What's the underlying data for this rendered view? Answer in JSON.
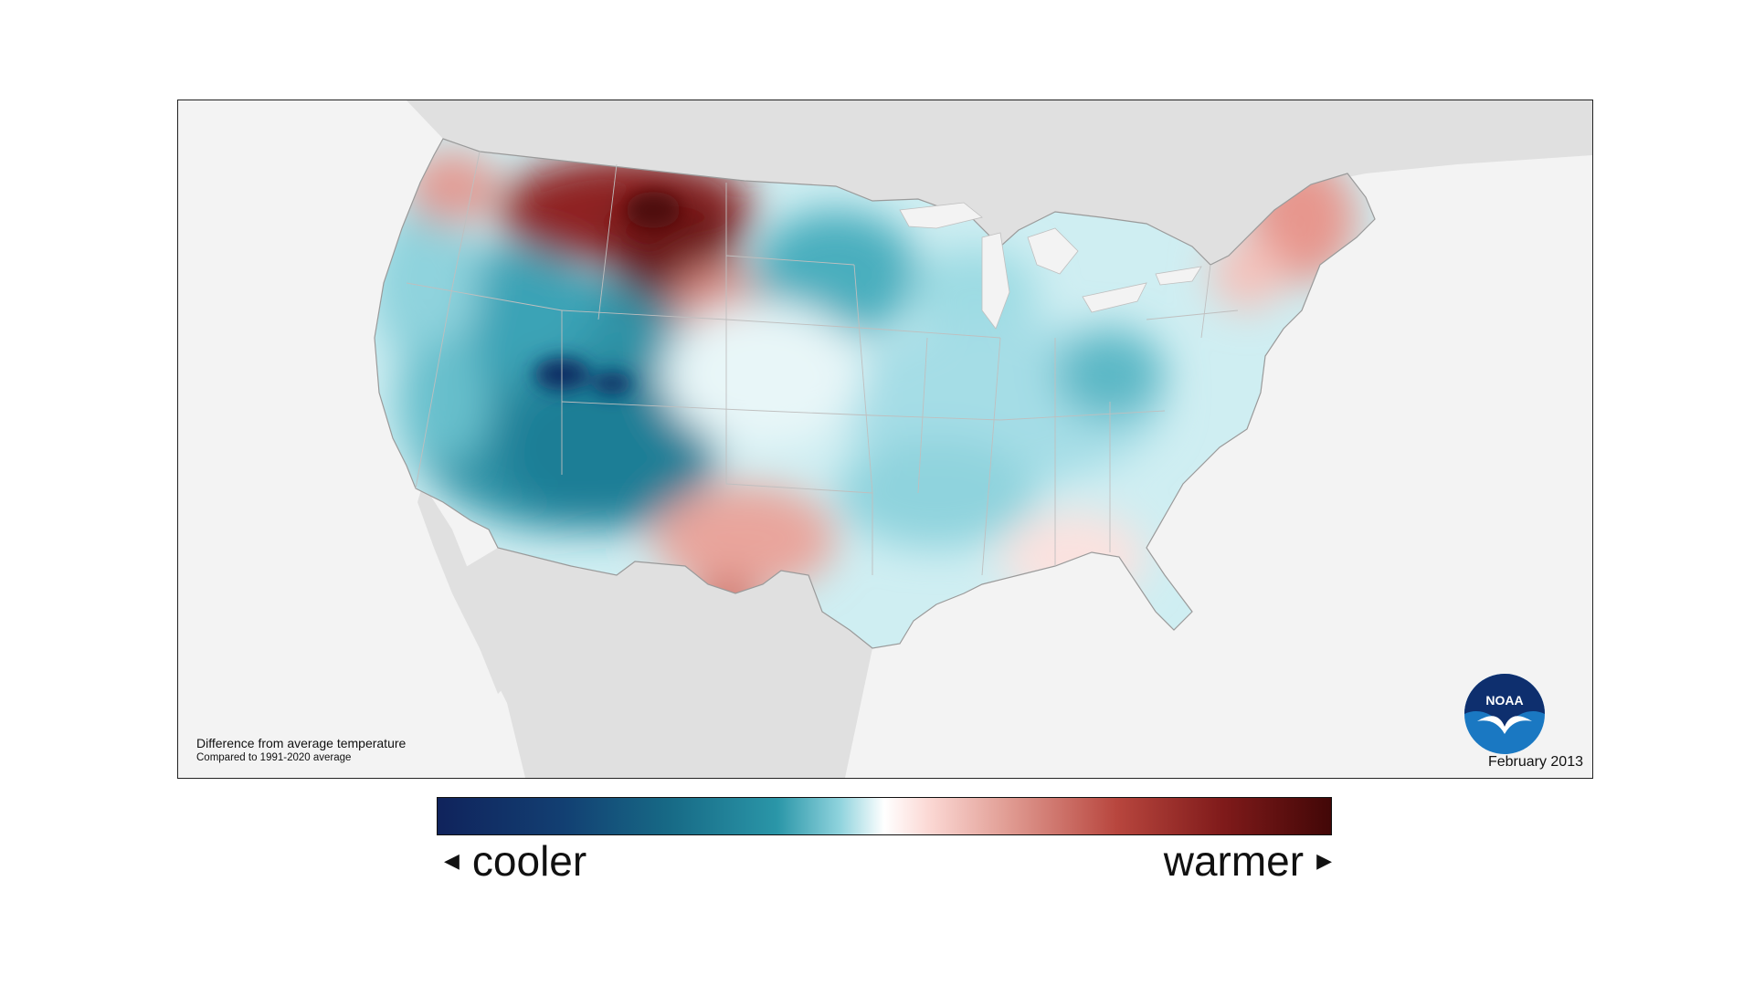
{
  "map": {
    "title": "",
    "caption_line1": "Difference from average temperature",
    "caption_line2": "Compared to 1991-2020 average",
    "date": "February 2013",
    "logo_text": "NOAA",
    "colors": {
      "cooler_extreme": "#10235c",
      "cool": "#2a96a8",
      "neutral": "#ffffff",
      "warm": "#e09b92",
      "warmer_extreme": "#420707",
      "land_outside": "#e0e0e0",
      "ocean": "#f3f3f3"
    }
  },
  "legend": {
    "cooler_label": "cooler",
    "warmer_label": "warmer",
    "left_arrow_icon": "triangle-left-icon",
    "right_arrow_icon": "triangle-right-icon"
  }
}
